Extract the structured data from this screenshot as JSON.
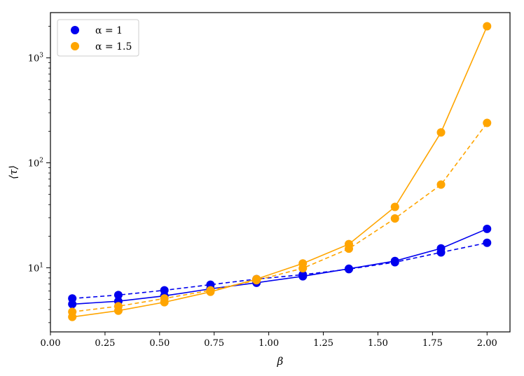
{
  "chart_data": {
    "type": "line",
    "title": "",
    "xlabel": "β",
    "ylabel": "⟨τ⟩",
    "xscale": "linear",
    "yscale": "log",
    "xlim": [
      -0.0,
      2.105
    ],
    "ylim": [
      2.45,
      2700
    ],
    "x_ticks": [
      0.0,
      0.25,
      0.5,
      0.75,
      1.0,
      1.25,
      1.5,
      1.75,
      2.0
    ],
    "x_tick_labels": [
      "0.00",
      "0.25",
      "0.50",
      "0.75",
      "1.00",
      "1.25",
      "1.50",
      "1.75",
      "2.00"
    ],
    "y_ticks": [
      10,
      100,
      1000
    ],
    "y_tick_labels": [
      {
        "base": "10",
        "exp": "1"
      },
      {
        "base": "10",
        "exp": "2"
      },
      {
        "base": "10",
        "exp": "3"
      }
    ],
    "grid": false,
    "legend_position": "top-left",
    "legend": [
      {
        "label": "α = 1",
        "color": "#0000ee"
      },
      {
        "label": "α = 1.5",
        "color": "#ffa500"
      }
    ],
    "x": [
      0.1,
      0.311,
      0.522,
      0.733,
      0.944,
      1.156,
      1.367,
      1.578,
      1.789,
      2.0
    ],
    "series": [
      {
        "group": "α = 1",
        "color": "#0000ee",
        "line_style": "solid",
        "values": [
          4.5,
          4.8,
          5.4,
          6.3,
          7.2,
          8.3,
          9.8,
          11.6,
          15.3,
          23.5
        ]
      },
      {
        "group": "α = 1",
        "color": "#0000ee",
        "line_style": "dashed",
        "values": [
          5.1,
          5.5,
          6.1,
          6.9,
          7.8,
          8.6,
          9.7,
          11.3,
          14.0,
          17.3
        ]
      },
      {
        "group": "α = 1.5",
        "color": "#ffa500",
        "line_style": "solid",
        "values": [
          3.4,
          3.9,
          4.7,
          5.9,
          7.8,
          11.0,
          16.8,
          38.0,
          195,
          2000
        ]
      },
      {
        "group": "α = 1.5",
        "color": "#ffa500",
        "line_style": "dashed",
        "values": [
          3.8,
          4.3,
          5.1,
          6.1,
          7.6,
          9.9,
          15.2,
          29.5,
          62,
          240
        ]
      }
    ]
  }
}
